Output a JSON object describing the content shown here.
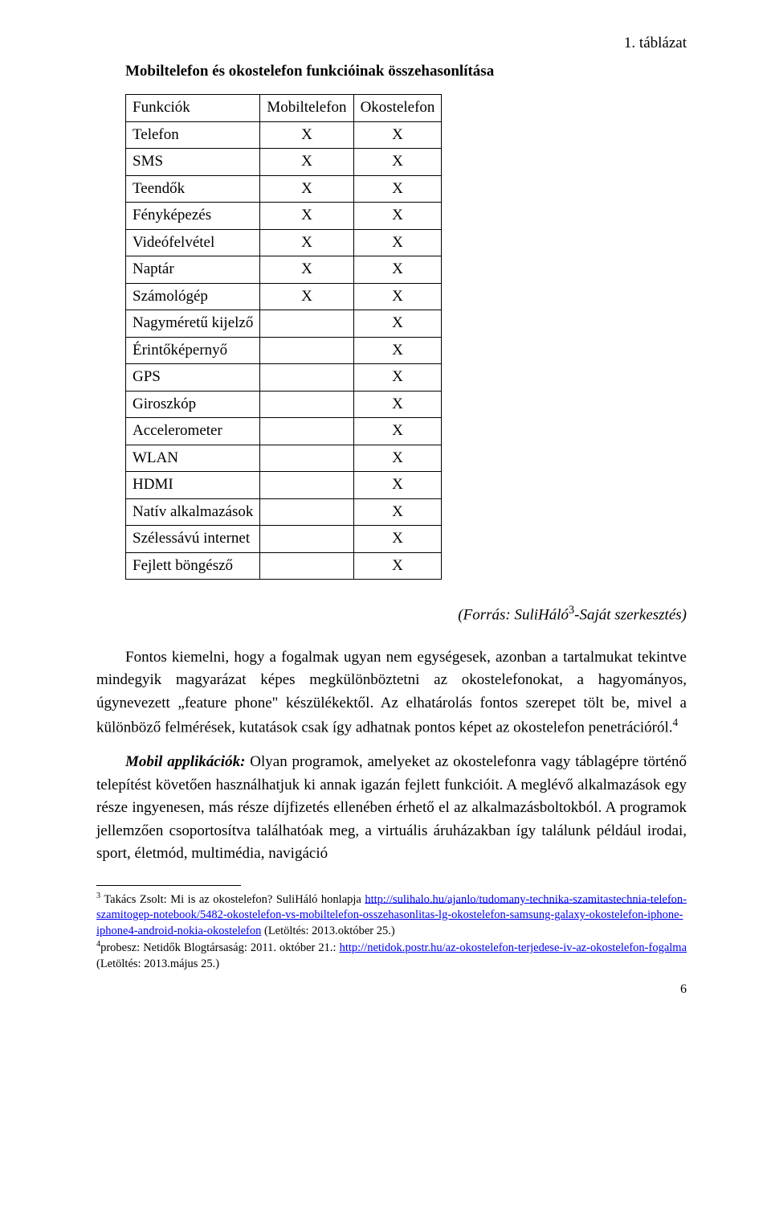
{
  "table_label": "1.  táblázat",
  "table_title": "Mobiltelefon és okostelefon funkcióinak összehasonlítása",
  "comparison": {
    "columns": [
      "Funkciók",
      "Mobiltelefon",
      "Okostelefon"
    ],
    "rows": [
      {
        "f": "Telefon",
        "m": "X",
        "o": "X"
      },
      {
        "f": "SMS",
        "m": "X",
        "o": "X"
      },
      {
        "f": "Teendők",
        "m": "X",
        "o": "X"
      },
      {
        "f": "Fényképezés",
        "m": "X",
        "o": "X"
      },
      {
        "f": "Videófelvétel",
        "m": "X",
        "o": "X"
      },
      {
        "f": "Naptár",
        "m": "X",
        "o": "X"
      },
      {
        "f": "Számológép",
        "m": "X",
        "o": "X"
      },
      {
        "f": "Nagyméretű kijelző",
        "m": "",
        "o": "X"
      },
      {
        "f": "Érintőképernyő",
        "m": "",
        "o": "X"
      },
      {
        "f": "GPS",
        "m": "",
        "o": "X"
      },
      {
        "f": "Giroszkóp",
        "m": "",
        "o": "X"
      },
      {
        "f": "Accelerometer",
        "m": "",
        "o": "X"
      },
      {
        "f": "WLAN",
        "m": "",
        "o": "X"
      },
      {
        "f": "HDMI",
        "m": "",
        "o": "X"
      },
      {
        "f": "Natív alkalmazások",
        "m": "",
        "o": "X"
      },
      {
        "f": "Szélessávú internet",
        "m": "",
        "o": "X"
      },
      {
        "f": "Fejlett böngésző",
        "m": "",
        "o": "X"
      }
    ]
  },
  "source_line_prefix": "(Forrás: SuliHáló",
  "source_sup": "3",
  "source_line_suffix": "-Saját szerkesztés)",
  "para1": {
    "text_a": "Fontos kiemelni, hogy a fogalmak ugyan nem egységesek, azonban a tartalmukat tekintve mindegyik magyarázat képes megkülönböztetni az okostelefonokat, a hagyományos, úgynevezett „feature phone\" készülékektől. Az elhatárolás fontos szerepet tölt be, mivel a különböző felmérések, kutatások csak így adhatnak pontos képet az okostelefon penetrációról.",
    "sup": "4"
  },
  "para2": {
    "lead": "Mobil applikációk:",
    "rest": " Olyan programok, amelyeket az okostelefonra vagy táblagépre történő telepítést követően használhatjuk ki annak igazán fejlett funkcióit. A meglévő alkalmazások egy része ingyenesen, más része díjfizetés ellenében érhető el az alkalmazásboltokból. A programok jellemzően csoportosítva találhatóak meg, a virtuális áruházakban így találunk például irodai, sport, életmód, multimédia, navigáció"
  },
  "footnotes": {
    "fn3": {
      "sup": "3",
      "pre": " Takács Zsolt: Mi is az okostelefon? SuliHáló honlapja ",
      "link_text": "http://sulihalo.hu/ajanlo/tudomany-technika-szamitastechnia-telefon-szamitogep-notebook/5482-okostelefon-vs-mobiltelefon-osszehasonlitas-lg-okostelefon-samsung-galaxy-okostelefon-iphone-iphone4-android-nokia-okostelefon",
      "post": " (Letöltés: 2013.október 25.)"
    },
    "fn4": {
      "sup": "4",
      "pre": "probesz: Netidők Blogtársaság: 2011. október 21.: ",
      "link_text": "http://netidok.postr.hu/az-okostelefon-terjedese-iv-az-okostelefon-fogalma",
      "post": " (Letöltés: 2013.május 25.)"
    }
  },
  "page_number": "6"
}
